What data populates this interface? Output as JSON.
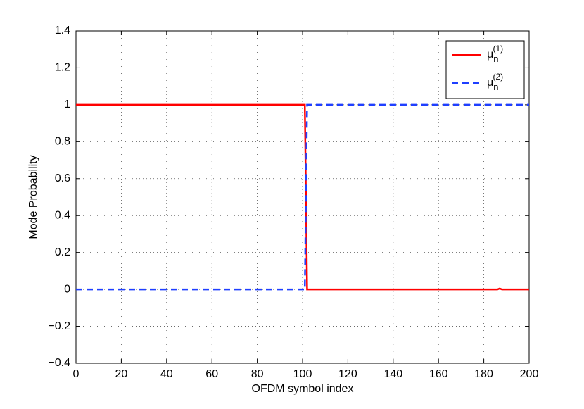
{
  "chart_data": {
    "type": "line",
    "xlabel": "OFDM symbol index",
    "ylabel": "Mode Probability",
    "xlim": [
      0,
      200
    ],
    "ylim": [
      -0.4,
      1.4
    ],
    "xticks": [
      0,
      20,
      40,
      60,
      80,
      100,
      120,
      140,
      160,
      180,
      200
    ],
    "yticks": [
      {
        "value": -0.4,
        "label": "−0.4"
      },
      {
        "value": -0.2,
        "label": "−0.2"
      },
      0,
      0.2,
      0.4,
      0.6,
      0.8,
      1,
      1.2,
      1.4
    ],
    "grid": true,
    "legend": "upper right",
    "series": [
      {
        "name": "μn(1)",
        "color": "#ff0000",
        "dash": false,
        "x": [
          0,
          101,
          102,
          186,
          187,
          188,
          200
        ],
        "values": [
          1,
          1,
          0,
          0,
          0.005,
          0,
          0
        ]
      },
      {
        "name": "μn(2)",
        "color": "#1f3fff",
        "dash": true,
        "x": [
          0,
          101,
          102,
          200
        ],
        "values": [
          0,
          0,
          1,
          1
        ]
      }
    ]
  }
}
